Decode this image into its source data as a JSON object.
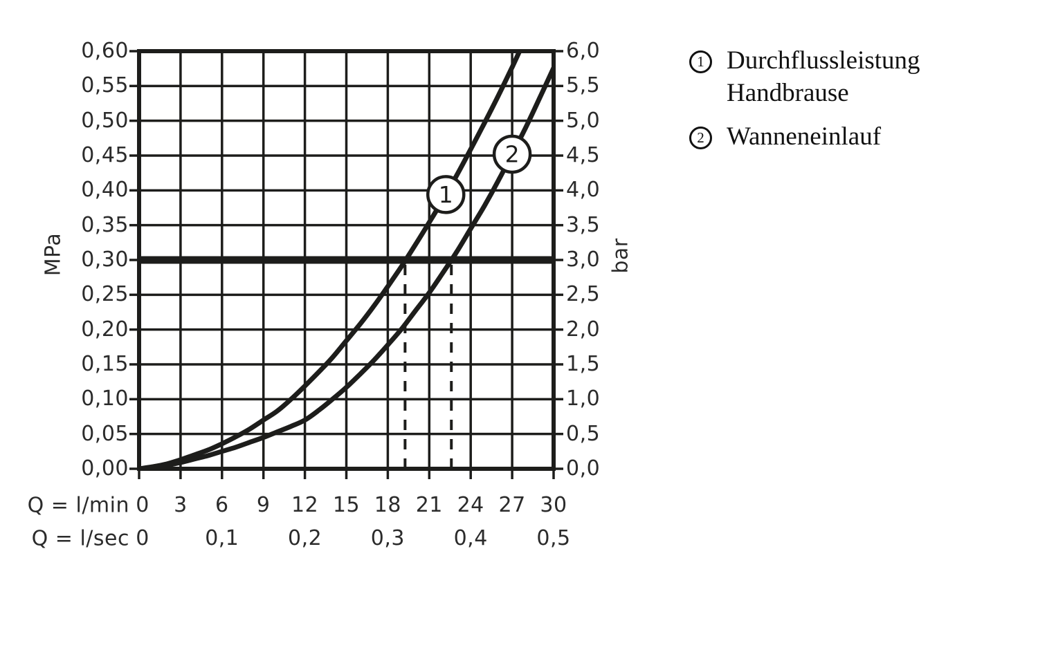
{
  "legend": {
    "items": [
      {
        "marker": "1",
        "lines": [
          "Durchflussleistung",
          "Handbrause"
        ]
      },
      {
        "marker": "2",
        "lines": [
          "Wanneneinlauf"
        ]
      }
    ]
  },
  "chart_data": {
    "type": "line",
    "title": "",
    "grid": "on",
    "colors": {
      "ink": "#1d1d1b",
      "text": "#2b2b2b",
      "background": "#ffffff"
    },
    "x_axis": {
      "range_lmin": [
        0,
        30
      ],
      "gridline_every_lmin": 3,
      "rows": [
        {
          "label": "Q = l/min",
          "ticks": [
            "0",
            "3",
            "6",
            "9",
            "12",
            "15",
            "18",
            "21",
            "24",
            "27",
            "30"
          ],
          "at_lmin": [
            0,
            3,
            6,
            9,
            12,
            15,
            18,
            21,
            24,
            27,
            30
          ]
        },
        {
          "label": "Q = l/sec",
          "ticks": [
            "0",
            "0,1",
            "0,2",
            "0,3",
            "0,4",
            "0,5"
          ],
          "at_lmin": [
            0,
            6,
            12,
            18,
            24,
            30
          ]
        }
      ]
    },
    "y_axis_left": {
      "label": "MPa",
      "range": [
        0,
        0.6
      ],
      "gridline_every": 0.05,
      "ticks": [
        "0,60",
        "0,55",
        "0,50",
        "0,45",
        "0,40",
        "0,35",
        "0,30",
        "0,25",
        "0,20",
        "0,15",
        "0,10",
        "0,05",
        "0,00"
      ],
      "values": [
        0.6,
        0.55,
        0.5,
        0.45,
        0.4,
        0.35,
        0.3,
        0.25,
        0.2,
        0.15,
        0.1,
        0.05,
        0.0
      ]
    },
    "y_axis_right": {
      "label": "bar",
      "range": [
        0,
        6
      ],
      "ticks": [
        "6,0",
        "5,5",
        "5,0",
        "4,5",
        "4,0",
        "3,5",
        "3,0",
        "2,5",
        "2,0",
        "1,5",
        "1,0",
        "0,5",
        "0,0"
      ],
      "values": [
        6.0,
        5.5,
        5.0,
        4.5,
        4.0,
        3.5,
        3.0,
        2.5,
        2.0,
        1.5,
        1.0,
        0.5,
        0.0
      ]
    },
    "reference_line": {
      "value_mpa": 0.3,
      "value_bar": 3.0,
      "style": "thick-solid"
    },
    "drop_lines": [
      {
        "at_lmin": 19.25,
        "from_mpa": 0.3,
        "style": "dashed"
      },
      {
        "at_lmin": 22.6,
        "from_mpa": 0.3,
        "style": "dashed"
      }
    ],
    "series": [
      {
        "name": "Durchflussleistung Handbrause",
        "badge": {
          "label": "1",
          "at_lmin": 22.2,
          "at_mpa": 0.394
        },
        "points_lmin_mpa": [
          [
            0,
            0
          ],
          [
            1,
            0.003
          ],
          [
            2,
            0.007
          ],
          [
            3,
            0.013
          ],
          [
            4,
            0.02
          ],
          [
            5,
            0.027
          ],
          [
            6,
            0.036
          ],
          [
            7,
            0.046
          ],
          [
            8,
            0.057
          ],
          [
            9,
            0.07
          ],
          [
            10,
            0.083
          ],
          [
            11,
            0.1
          ],
          [
            12,
            0.119
          ],
          [
            13,
            0.139
          ],
          [
            14,
            0.16
          ],
          [
            15,
            0.184
          ],
          [
            16,
            0.208
          ],
          [
            17,
            0.234
          ],
          [
            18,
            0.262
          ],
          [
            19,
            0.291
          ],
          [
            20,
            0.322
          ],
          [
            21,
            0.354
          ],
          [
            22,
            0.387
          ],
          [
            23,
            0.422
          ],
          [
            24,
            0.459
          ],
          [
            25,
            0.497
          ],
          [
            26,
            0.536
          ],
          [
            27,
            0.577
          ],
          [
            28,
            0.62
          ]
        ]
      },
      {
        "name": "Wanneneinlauf",
        "badge": {
          "label": "2",
          "at_lmin": 27.0,
          "at_mpa": 0.452
        },
        "points_lmin_mpa": [
          [
            0,
            0
          ],
          [
            1,
            0.002
          ],
          [
            2,
            0.005
          ],
          [
            3,
            0.009
          ],
          [
            4,
            0.014
          ],
          [
            5,
            0.019
          ],
          [
            6,
            0.025
          ],
          [
            7,
            0.031
          ],
          [
            8,
            0.038
          ],
          [
            9,
            0.045
          ],
          [
            10,
            0.053
          ],
          [
            11,
            0.061
          ],
          [
            12,
            0.07
          ],
          [
            13,
            0.084
          ],
          [
            14,
            0.1
          ],
          [
            15,
            0.117
          ],
          [
            16,
            0.136
          ],
          [
            17,
            0.156
          ],
          [
            18,
            0.178
          ],
          [
            19,
            0.201
          ],
          [
            20,
            0.227
          ],
          [
            21,
            0.253
          ],
          [
            22,
            0.282
          ],
          [
            23,
            0.312
          ],
          [
            24,
            0.345
          ],
          [
            25,
            0.378
          ],
          [
            26,
            0.414
          ],
          [
            27,
            0.452
          ],
          [
            28,
            0.491
          ],
          [
            29,
            0.533
          ],
          [
            30,
            0.576
          ]
        ]
      }
    ]
  }
}
